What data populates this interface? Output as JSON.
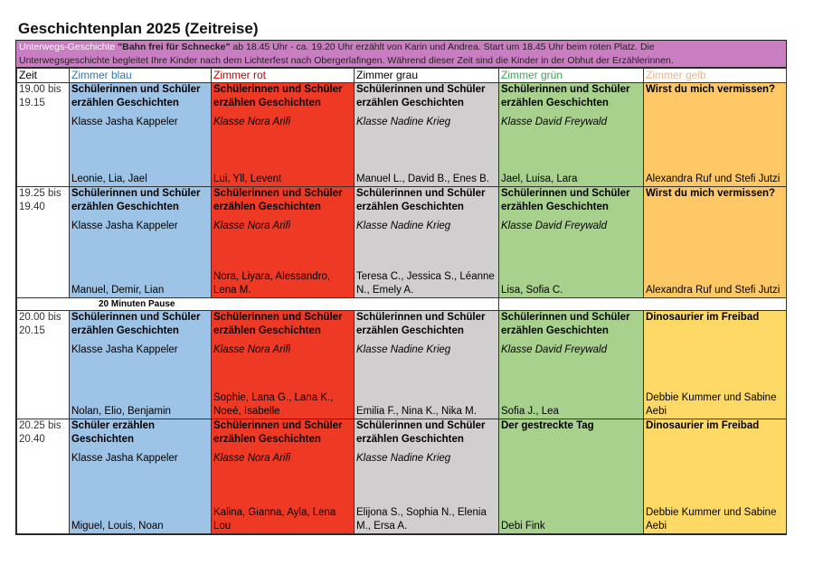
{
  "title": "Geschichtenplan 2025 (Zeitreise)",
  "intro": {
    "prefix": "Unterwegs-Geschichte ",
    "story": "\"Bahn frei für Schnecke\"",
    "line1": " ab 18.45 Uhr - ca. 19.20 Uhr erzählt von Karin und Andrea. Start um 18.45 Uhr beim roten Platz.  Die",
    "line2": "Unterwegsgeschichte begleitet Ihre Kinder nach dem Lichterfest  nach Obergerlafingen. Während dieser Zeit sind die Kinder in der Obhut der Erzählerinnen."
  },
  "headers": [
    {
      "label": "Zeit",
      "color": "#000000"
    },
    {
      "label": "Zimmer blau",
      "color": "#2e75b6"
    },
    {
      "label": "Zimmer rot",
      "color": "#c00000"
    },
    {
      "label": "Zimmer grau",
      "color": "#000000"
    },
    {
      "label": "Zimmer grün",
      "color": "#3aa655"
    },
    {
      "label": "Zimmer gelb",
      "color": "#f4b183"
    }
  ],
  "colors": [
    "#9dc3e6",
    "#ee3a24",
    "#d0cece",
    "#a9d18e"
  ],
  "pause": "20 Minuten Pause",
  "blocks": [
    {
      "time": [
        "19.00 bis",
        "19.15"
      ],
      "yellow": "#fdc865",
      "cells": [
        {
          "title": "Schülerinnen und Schüler erzählen Geschichten",
          "class": "Klasse Jasha Kappeler",
          "names": "Leonie, Lia, Jael"
        },
        {
          "title": "Schülerinnen und Schüler erzählen Geschichten",
          "class": "Klasse Nora Arifi",
          "names": "Lui, Yll, Levent"
        },
        {
          "title": "Schülerinnen und Schüler erzählen Geschichten",
          "class": "Klasse Nadine Krieg",
          "names": "Manuel L., David B., Enes B."
        },
        {
          "title": "Schülerinnen und Schüler erzählen Geschichten",
          "class": "Klasse David Freywald",
          "names": "Jael, Luisa, Lara"
        },
        {
          "title": "Wirst du mich vermissen?",
          "class": "",
          "names": "Alexandra Ruf und Stefi Jutzi"
        }
      ]
    },
    {
      "time": [
        "19.25 bis",
        "19.40"
      ],
      "yellow": "#fdc865",
      "cells": [
        {
          "title": "Schülerinnen und Schüler erzählen Geschichten",
          "class": "Klasse Jasha Kappeler",
          "names": "Manuel, Demir, Lian"
        },
        {
          "title": "Schülerinnen und Schüler erzählen Geschichten",
          "class": "Klasse Nora Arifi",
          "names": "Nora, Liyara, Alessandro, Lena M."
        },
        {
          "title": "Schülerinnen und Schüler erzählen Geschichten",
          "class": "Klasse Nadine Krieg",
          "names": "Teresa C., Jessica S., Léanne N., Emely A."
        },
        {
          "title": "Schülerinnen und Schüler erzählen Geschichten",
          "class": "Klasse David Freywald",
          "names": "Lisa, Sofia C."
        },
        {
          "title": "Wirst du  mich vermissen?",
          "class": "",
          "names": "Alexandra Ruf und Stefi Jutzi"
        }
      ]
    },
    {
      "time": [
        "20.00 bis",
        "20.15"
      ],
      "yellow": "#ffd966",
      "cells": [
        {
          "title": "Schülerinnen und Schüler erzählen Geschichten",
          "class": "Klasse Jasha Kappeler",
          "names": "Nolan, Elio, Benjamin"
        },
        {
          "title": "Schülerinnen und Schüler erzählen Geschichten",
          "class": "Klasse Nora Arifi",
          "names": "Sophie, Lana G., Lana K., Noeé, Isabelle"
        },
        {
          "title": "Schülerinnen und Schüler erzählen Geschichten",
          "class": "Klasse Nadine Krieg",
          "names": "Emilia F., Nina K., Nika M."
        },
        {
          "title": "Schülerinnen und Schüler erzählen Geschichten",
          "class": "Klasse David Freywald",
          "names": "Sofia J., Lea"
        },
        {
          "title": "Dinosaurier im Freibad",
          "class": "",
          "names": "Debbie Kummer und Sabine Aebi"
        }
      ]
    },
    {
      "time": [
        "20.25 bis",
        "20.40"
      ],
      "yellow": "#ffd966",
      "cells": [
        {
          "title": "Schüler erzählen Geschichten",
          "class": "Klasse Jasha Kappeler",
          "names": "Miguel, Louis, Noan"
        },
        {
          "title": "Schülerinnen und Schüler erzählen Geschichten",
          "class": "Klasse Nora Arifi",
          "names": "Kalina, Gianna, Ayla, Lena Lou"
        },
        {
          "title": "Schülerinnen und Schüler erzählen Geschichten",
          "class": "Klasse Nadine Krieg",
          "names": "Elijona S., Sophia N., Elenia M., Ersa A."
        },
        {
          "title": "Der gestreckte Tag",
          "class": "",
          "names": "Debi Fink"
        },
        {
          "title": "Dinosaurier im Freibad",
          "class": "",
          "names": "Debbie Kummer und Sabine Aebi"
        }
      ]
    }
  ]
}
